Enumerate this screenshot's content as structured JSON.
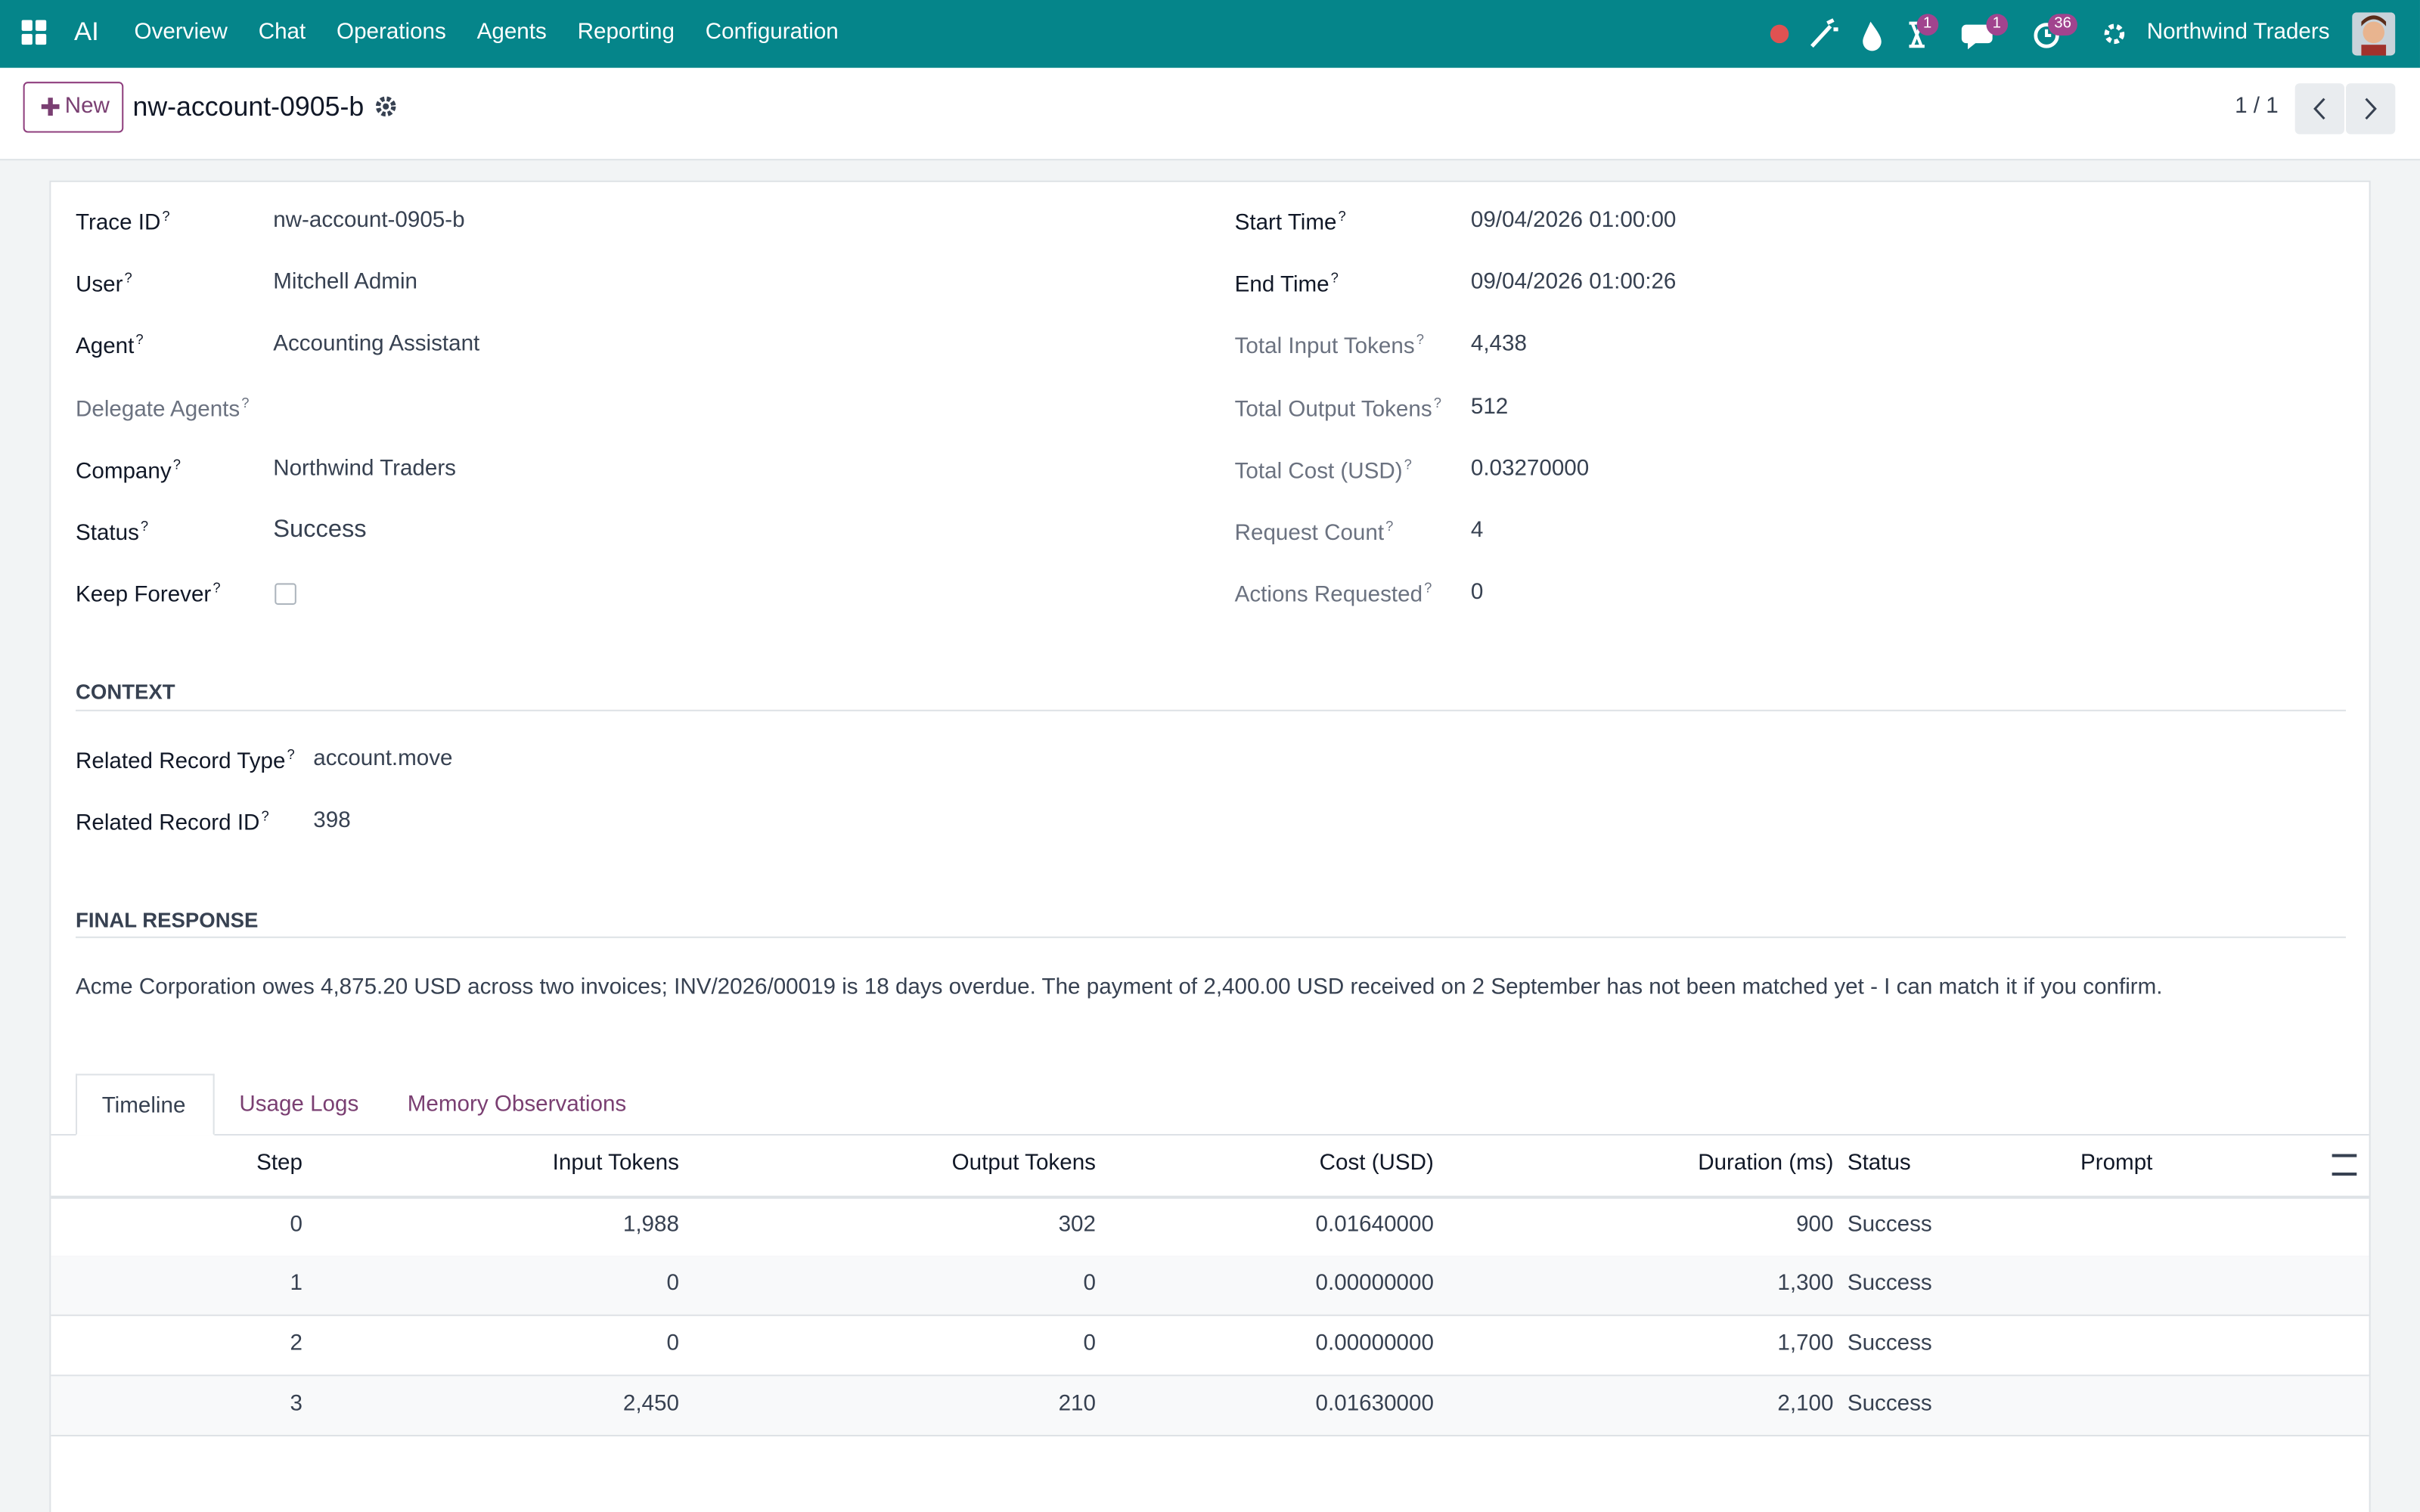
{
  "navbar": {
    "app": "AI",
    "menu": [
      "Overview",
      "Chat",
      "Operations",
      "Agents",
      "Reporting",
      "Configuration"
    ],
    "badges": [
      "1",
      "1",
      "36"
    ],
    "company": "Northwind Traders"
  },
  "control_panel": {
    "new_button": "New",
    "record_name": "nw-account-0905-b",
    "pager": "1 / 1"
  },
  "form": {
    "help_marker": "?",
    "left_fields": [
      {
        "label": "Trace ID",
        "value": "nw-account-0905-b"
      },
      {
        "label": "User",
        "value": "Mitchell Admin"
      },
      {
        "label": "Agent",
        "value": "Accounting Assistant"
      },
      {
        "label": "Delegate Agents"
      },
      {
        "label": "Company",
        "value": "Northwind Traders"
      },
      {
        "label": "Status",
        "value": "Success"
      },
      {
        "label": "Keep Forever"
      }
    ],
    "right_fields": [
      {
        "label": "Start Time",
        "value": "09/04/2026 01:00:00"
      },
      {
        "label": "End Time",
        "value": "09/04/2026 01:00:26"
      },
      {
        "label": "Total Input Tokens",
        "value": "4,438"
      },
      {
        "label": "Total Output Tokens",
        "value": "512"
      },
      {
        "label": "Total Cost (USD)",
        "value": "0.03270000"
      },
      {
        "label": "Request Count",
        "value": "4"
      },
      {
        "label": "Actions Requested",
        "value": "0"
      }
    ],
    "context": {
      "title": "CONTEXT",
      "fields": [
        {
          "label": "Related Record Type",
          "value": "account.move"
        },
        {
          "label": "Related Record ID",
          "value": "398"
        }
      ]
    },
    "final_response": {
      "title": "FINAL RESPONSE",
      "text": "Acme Corporation owes 4,875.20 USD across two invoices; INV/2026/00019 is 18 days overdue. The payment of 2,400.00 USD received on 2 September has not been matched yet - I can match it if you confirm."
    },
    "tabs": [
      "Timeline",
      "Usage Logs",
      "Memory Observations"
    ],
    "table": {
      "columns": [
        "Step",
        "Input Tokens",
        "Output Tokens",
        "Cost (USD)",
        "Duration (ms)",
        "Status",
        "Prompt"
      ],
      "rows": [
        [
          "0",
          "1,988",
          "302",
          "0.01640000",
          "900",
          "Success"
        ],
        [
          "1",
          "0",
          "0",
          "0.00000000",
          "1,300",
          "Success"
        ],
        [
          "2",
          "0",
          "0",
          "0.00000000",
          "1,700",
          "Success"
        ],
        [
          "3",
          "2,450",
          "210",
          "0.01630000",
          "2,100",
          "Success"
        ]
      ]
    }
  }
}
